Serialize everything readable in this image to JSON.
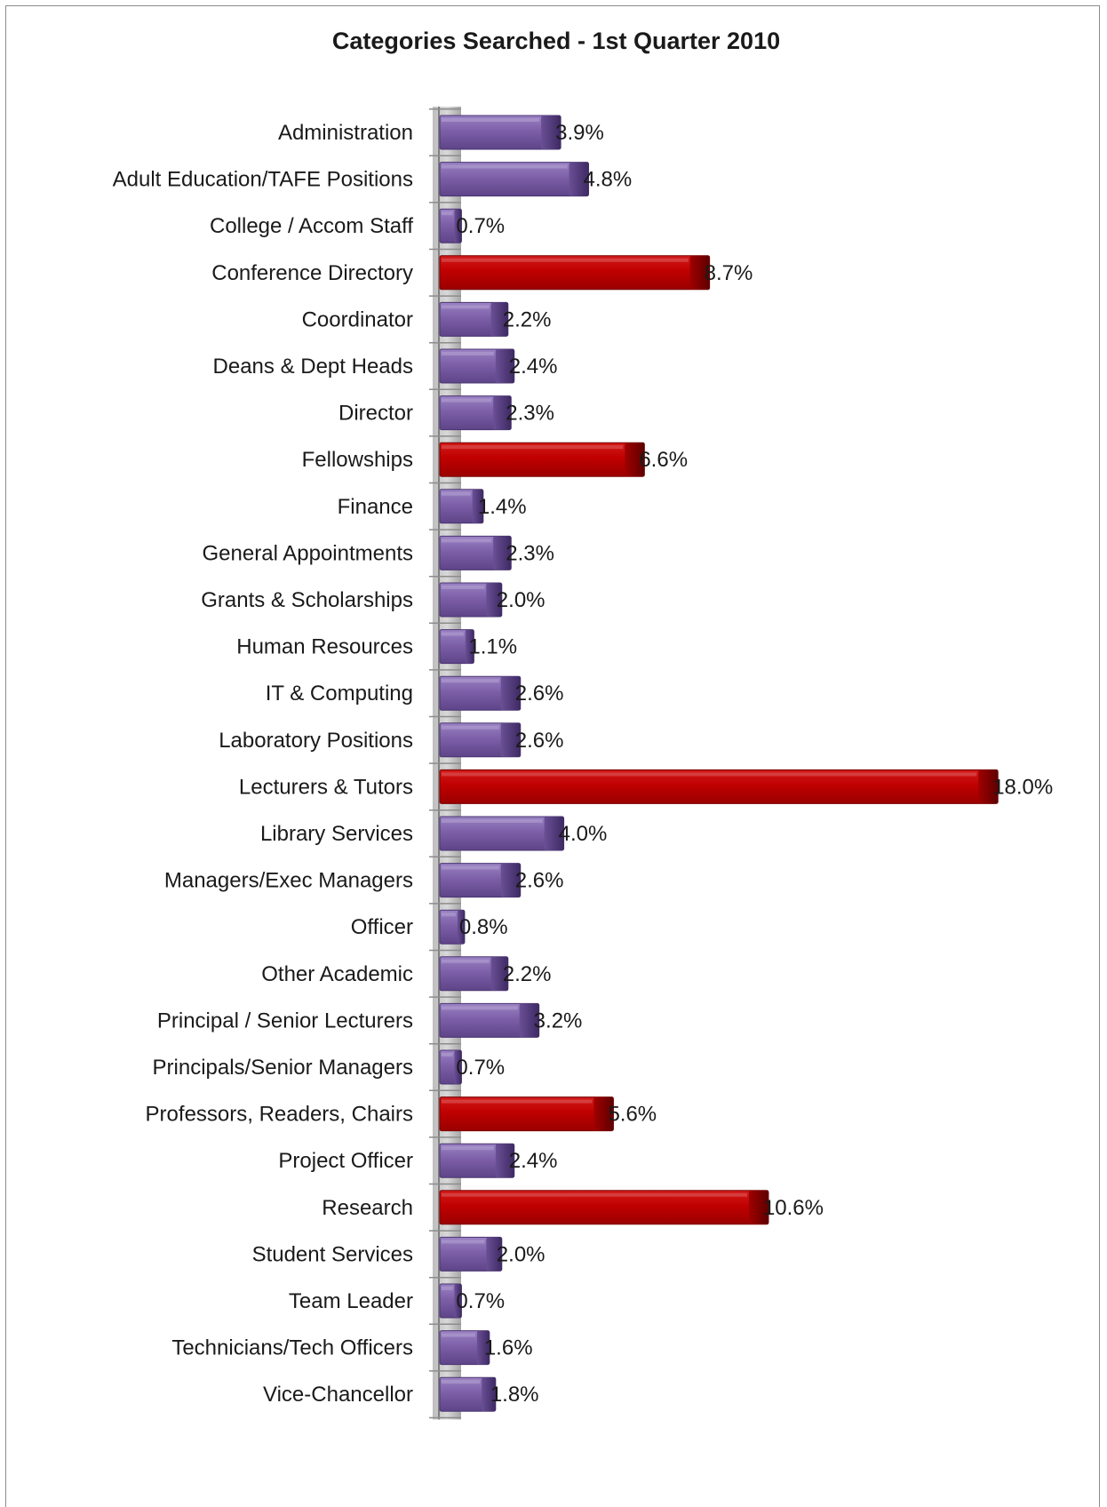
{
  "chart_data": {
    "type": "bar",
    "orientation": "horizontal",
    "title": "Categories Searched - 1st Quarter 2010",
    "xlabel": "",
    "ylabel": "",
    "xlim": [
      0,
      18.0
    ],
    "grid": false,
    "legend": "none",
    "colors": {
      "default": "#7d5fa8",
      "highlight": "#c00000"
    },
    "categories": [
      "Administration",
      "Adult Education/TAFE Positions",
      "College / Accom Staff",
      "Conference Directory",
      "Coordinator",
      "Deans & Dept Heads",
      "Director",
      "Fellowships",
      "Finance",
      "General Appointments",
      "Grants & Scholarships",
      "Human Resources",
      "IT & Computing",
      "Laboratory Positions",
      "Lecturers & Tutors",
      "Library Services",
      "Managers/Exec Managers",
      "Officer",
      "Other Academic",
      "Principal / Senior Lecturers",
      "Principals/Senior Managers",
      "Professors, Readers, Chairs",
      "Project Officer",
      "Research",
      "Student Services",
      "Team Leader",
      "Technicians/Tech Officers",
      "Vice-Chancellor"
    ],
    "values": [
      3.9,
      4.8,
      0.7,
      8.7,
      2.2,
      2.4,
      2.3,
      6.6,
      1.4,
      2.3,
      2.0,
      1.1,
      2.6,
      2.6,
      18.0,
      4.0,
      2.6,
      0.8,
      2.2,
      3.2,
      0.7,
      5.6,
      2.4,
      10.6,
      2.0,
      0.7,
      1.6,
      1.8
    ],
    "data_labels": [
      "3.9%",
      "4.8%",
      "0.7%",
      "8.7%",
      "2.2%",
      "2.4%",
      "2.3%",
      "6.6%",
      "1.4%",
      "2.3%",
      "2.0%",
      "1.1%",
      "2.6%",
      "2.6%",
      "18.0%",
      "4.0%",
      "2.6%",
      "0.8%",
      "2.2%",
      "3.2%",
      "0.7%",
      "5.6%",
      "2.4%",
      "10.6%",
      "2.0%",
      "0.7%",
      "1.6%",
      "1.8%"
    ],
    "highlighted": [
      false,
      false,
      false,
      true,
      false,
      false,
      false,
      true,
      false,
      false,
      false,
      false,
      false,
      false,
      true,
      false,
      false,
      false,
      false,
      false,
      false,
      true,
      false,
      true,
      false,
      false,
      false,
      false
    ]
  }
}
